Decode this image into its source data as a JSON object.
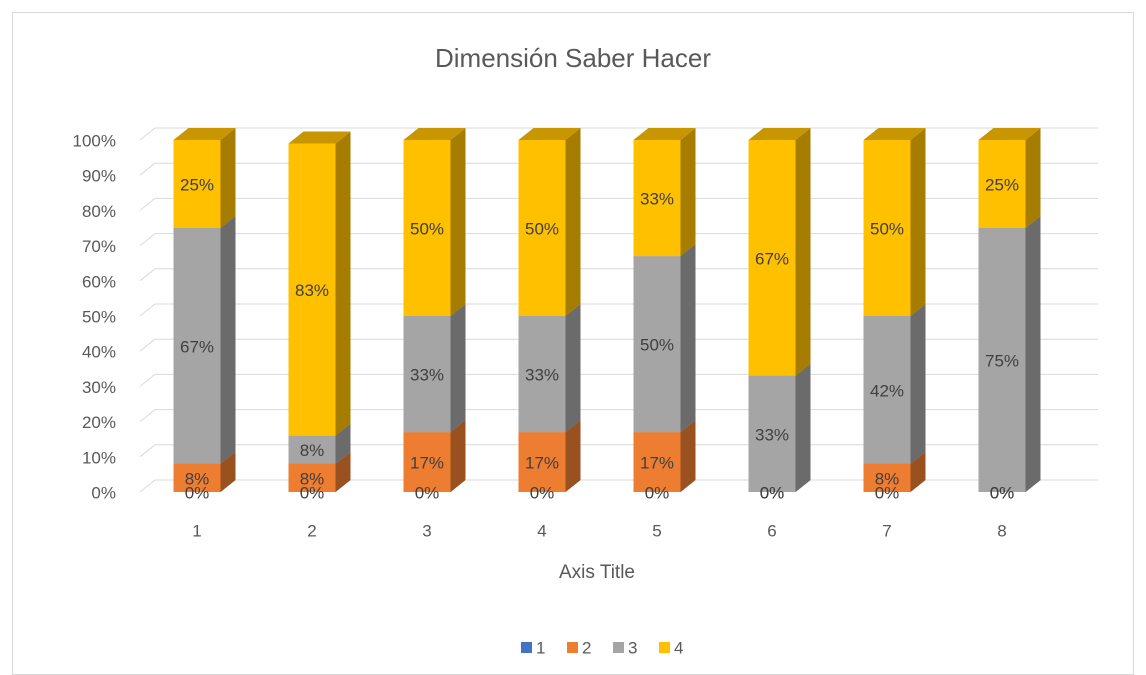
{
  "chart_data": {
    "type": "bar3d_stacked",
    "title": "Dimensión Saber Hacer",
    "x_label": "Axis Title",
    "categories": [
      "1",
      "2",
      "3",
      "4",
      "5",
      "6",
      "7",
      "8"
    ],
    "series": [
      {
        "name": "1",
        "color": "#4472c4",
        "values": [
          0,
          0,
          0,
          0,
          0,
          0,
          0,
          0
        ],
        "value_labels": [
          "0%",
          "0%",
          "0%",
          "0%",
          "0%",
          "0%",
          "0%",
          "0%"
        ]
      },
      {
        "name": "2",
        "color": "#ed7d31",
        "values": [
          8,
          8,
          17,
          17,
          17,
          0,
          8,
          0
        ],
        "value_labels": [
          "8%",
          "8%",
          "17%",
          "17%",
          "17%",
          "0%",
          "8%",
          "0%"
        ]
      },
      {
        "name": "3",
        "color": "#a5a5a5",
        "values": [
          67,
          8,
          33,
          33,
          50,
          33,
          42,
          75
        ],
        "value_labels": [
          "67%",
          "8%",
          "33%",
          "33%",
          "50%",
          "33%",
          "42%",
          "75%"
        ]
      },
      {
        "name": "4",
        "color": "#ffc000",
        "values": [
          25,
          83,
          50,
          50,
          33,
          67,
          50,
          25
        ],
        "value_labels": [
          "25%",
          "83%",
          "50%",
          "50%",
          "33%",
          "67%",
          "50%",
          "25%"
        ]
      }
    ],
    "ylim": [
      0,
      100
    ],
    "yticks": [
      {
        "value": 0,
        "label": "0%"
      },
      {
        "value": 10,
        "label": "10%"
      },
      {
        "value": 20,
        "label": "20%"
      },
      {
        "value": 30,
        "label": "30%"
      },
      {
        "value": 40,
        "label": "40%"
      },
      {
        "value": 50,
        "label": "50%"
      },
      {
        "value": 60,
        "label": "60%"
      },
      {
        "value": 70,
        "label": "70%"
      },
      {
        "value": 80,
        "label": "80%"
      },
      {
        "value": 90,
        "label": "90%"
      },
      {
        "value": 100,
        "label": "100%"
      }
    ],
    "grid": true,
    "legend": "bottom"
  }
}
